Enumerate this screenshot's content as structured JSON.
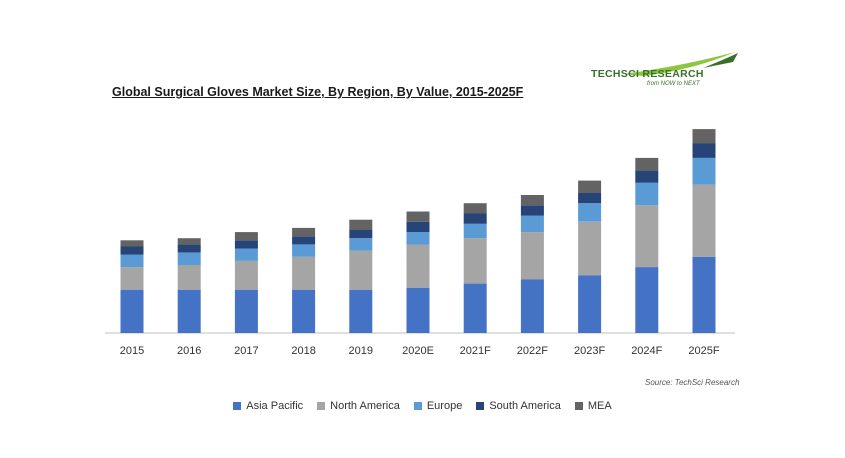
{
  "logo": {
    "name": "TECHSCI RESEARCH",
    "tagline": "from NOW to NEXT",
    "colors": {
      "text": "#3a6f2a",
      "swoosh": "#8cc63f"
    }
  },
  "source": "Source: TechSci Research",
  "chart_data": {
    "type": "bar",
    "stacked": true,
    "title": "Global Surgical Gloves Market Size, By Region, By Value, 2015-2025F",
    "xlabel": "",
    "ylabel": "",
    "ylim": [
      0,
      100
    ],
    "grid": false,
    "legend_position": "bottom",
    "categories": [
      "2015",
      "2016",
      "2017",
      "2018",
      "2019",
      "2020E",
      "2021F",
      "2022F",
      "2023F",
      "2024F",
      "2025F"
    ],
    "series": [
      {
        "name": "Asia Pacific",
        "color": "#4472c4",
        "values": [
          21,
          21,
          21,
          21,
          21,
          22,
          24,
          26,
          28,
          32,
          37
        ]
      },
      {
        "name": "North America",
        "color": "#a5a5a5",
        "values": [
          11,
          12,
          14,
          16,
          19,
          21,
          22,
          23,
          26,
          30,
          35
        ]
      },
      {
        "name": "Europe",
        "color": "#5b9bd5",
        "values": [
          6,
          6,
          6,
          6,
          6,
          6,
          7,
          8,
          9,
          11,
          13
        ]
      },
      {
        "name": "South America",
        "color": "#264478",
        "values": [
          4,
          4,
          4,
          4,
          4,
          5,
          5,
          5,
          5,
          6,
          7
        ]
      },
      {
        "name": "MEA",
        "color": "#636363",
        "values": [
          3,
          3,
          4,
          4,
          5,
          5,
          5,
          5,
          6,
          6,
          7
        ]
      }
    ]
  }
}
